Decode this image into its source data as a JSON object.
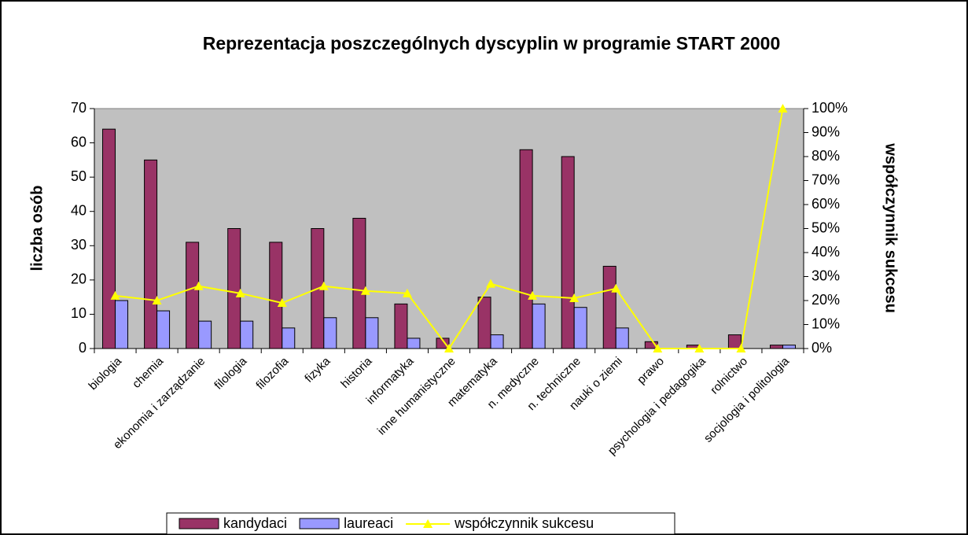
{
  "chart_data": {
    "type": "bar_line",
    "title": "Reprezentacja poszczególnych dyscyplin w programie START 2000",
    "y_label": "liczba osób",
    "y2_label": "współczynnik sukcesu",
    "categories": [
      "biologia",
      "chemia",
      "ekonomia i zarządzanie",
      "filologia",
      "filozofia",
      "fizyka",
      "historia",
      "informatyka",
      "inne humanistyczne",
      "matematyka",
      "n. medyczne",
      "n. techniczne",
      "nauki o ziemi",
      "prawo",
      "psychologia i pedagogika",
      "rolnictwo",
      "socjologia i politologia"
    ],
    "series": [
      {
        "name": "kandydaci",
        "color": "#993366",
        "type": "bar",
        "values": [
          64,
          55,
          31,
          35,
          31,
          35,
          38,
          13,
          3,
          15,
          58,
          56,
          24,
          2,
          1,
          4,
          1
        ]
      },
      {
        "name": "laureaci",
        "color": "#9999ff",
        "type": "bar",
        "values": [
          14,
          11,
          8,
          8,
          6,
          9,
          9,
          3,
          0,
          4,
          13,
          12,
          6,
          0,
          0,
          0,
          1
        ]
      },
      {
        "name": "współczynnik sukcesu",
        "color": "#ffff00",
        "type": "line",
        "axis": "y2",
        "values": [
          22,
          20,
          26,
          23,
          19,
          26,
          24,
          23,
          0,
          27,
          22,
          21,
          25,
          0,
          0,
          0,
          100
        ]
      }
    ],
    "ylim": [
      0,
      70
    ],
    "yticks": [
      0,
      10,
      20,
      30,
      40,
      50,
      60,
      70
    ],
    "y2lim": [
      0,
      100
    ],
    "y2ticks": [
      {
        "value": 0,
        "label": "0%"
      },
      {
        "value": 10,
        "label": "10%"
      },
      {
        "value": 20,
        "label": "20%"
      },
      {
        "value": 30,
        "label": "30%"
      },
      {
        "value": 40,
        "label": "40%"
      },
      {
        "value": 50,
        "label": "50%"
      },
      {
        "value": 60,
        "label": "60%"
      },
      {
        "value": 70,
        "label": "70%"
      },
      {
        "value": 80,
        "label": "80%"
      },
      {
        "value": 90,
        "label": "90%"
      },
      {
        "value": 100,
        "label": "100%"
      }
    ],
    "plot_background": "#c0c0c0",
    "legend": "bottom"
  }
}
